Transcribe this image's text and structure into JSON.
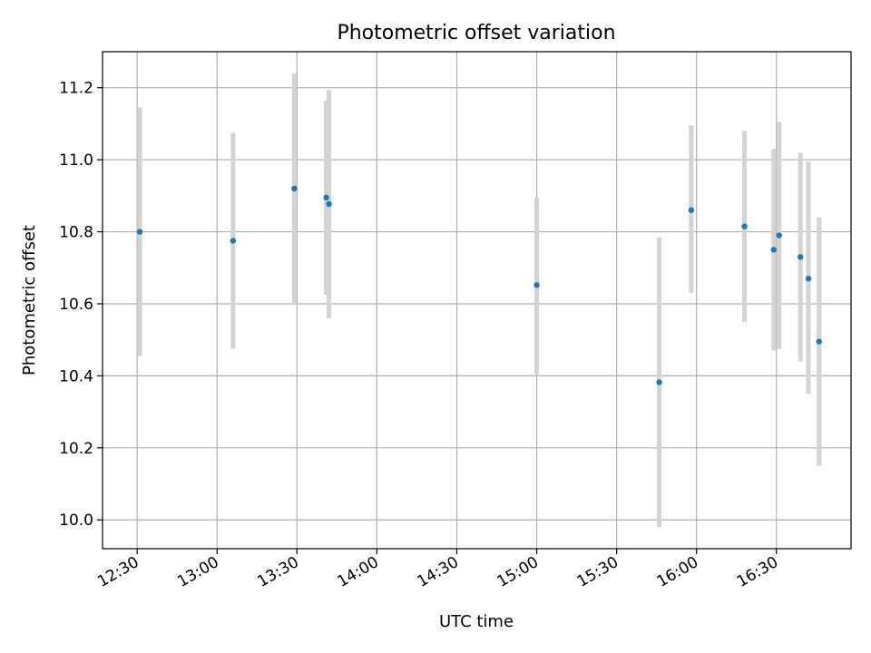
{
  "chart_data": {
    "type": "scatter",
    "title": "Photometric offset variation",
    "xlabel": "UTC time",
    "ylabel": "Photometric offset",
    "xlim": [
      "12:17",
      "16:58"
    ],
    "ylim": [
      9.92,
      11.3
    ],
    "grid": true,
    "x_ticks": [
      "12:30",
      "13:00",
      "13:30",
      "14:00",
      "14:30",
      "15:00",
      "15:30",
      "16:00",
      "16:30"
    ],
    "y_ticks": [
      10.0,
      10.2,
      10.4,
      10.6,
      10.8,
      11.0,
      11.2
    ],
    "points": [
      {
        "x": "12:31",
        "y": 10.8,
        "err_low": 10.455,
        "err_high": 11.145
      },
      {
        "x": "13:06",
        "y": 10.775,
        "err_low": 10.475,
        "err_high": 11.075
      },
      {
        "x": "13:29",
        "y": 10.92,
        "err_low": 10.6,
        "err_high": 11.24
      },
      {
        "x": "13:41",
        "y": 10.895,
        "err_low": 10.625,
        "err_high": 11.165
      },
      {
        "x": "13:42",
        "y": 10.877,
        "err_low": 10.56,
        "err_high": 11.195
      },
      {
        "x": "15:00",
        "y": 10.652,
        "err_low": 10.405,
        "err_high": 10.895
      },
      {
        "x": "15:46",
        "y": 10.382,
        "err_low": 9.98,
        "err_high": 10.785
      },
      {
        "x": "15:58",
        "y": 10.86,
        "err_low": 10.63,
        "err_high": 11.095
      },
      {
        "x": "16:18",
        "y": 10.815,
        "err_low": 10.55,
        "err_high": 11.08
      },
      {
        "x": "16:29",
        "y": 10.75,
        "err_low": 10.47,
        "err_high": 11.03
      },
      {
        "x": "16:31",
        "y": 10.79,
        "err_low": 10.475,
        "err_high": 11.105
      },
      {
        "x": "16:39",
        "y": 10.73,
        "err_low": 10.44,
        "err_high": 11.02
      },
      {
        "x": "16:42",
        "y": 10.67,
        "err_low": 10.35,
        "err_high": 10.995
      },
      {
        "x": "16:46",
        "y": 10.495,
        "err_low": 10.15,
        "err_high": 10.84
      }
    ],
    "colors": {
      "point": "#1f77b4",
      "errorbar": "#d3d3d3",
      "grid": "#b0b0b0",
      "axes": "#000000"
    }
  }
}
